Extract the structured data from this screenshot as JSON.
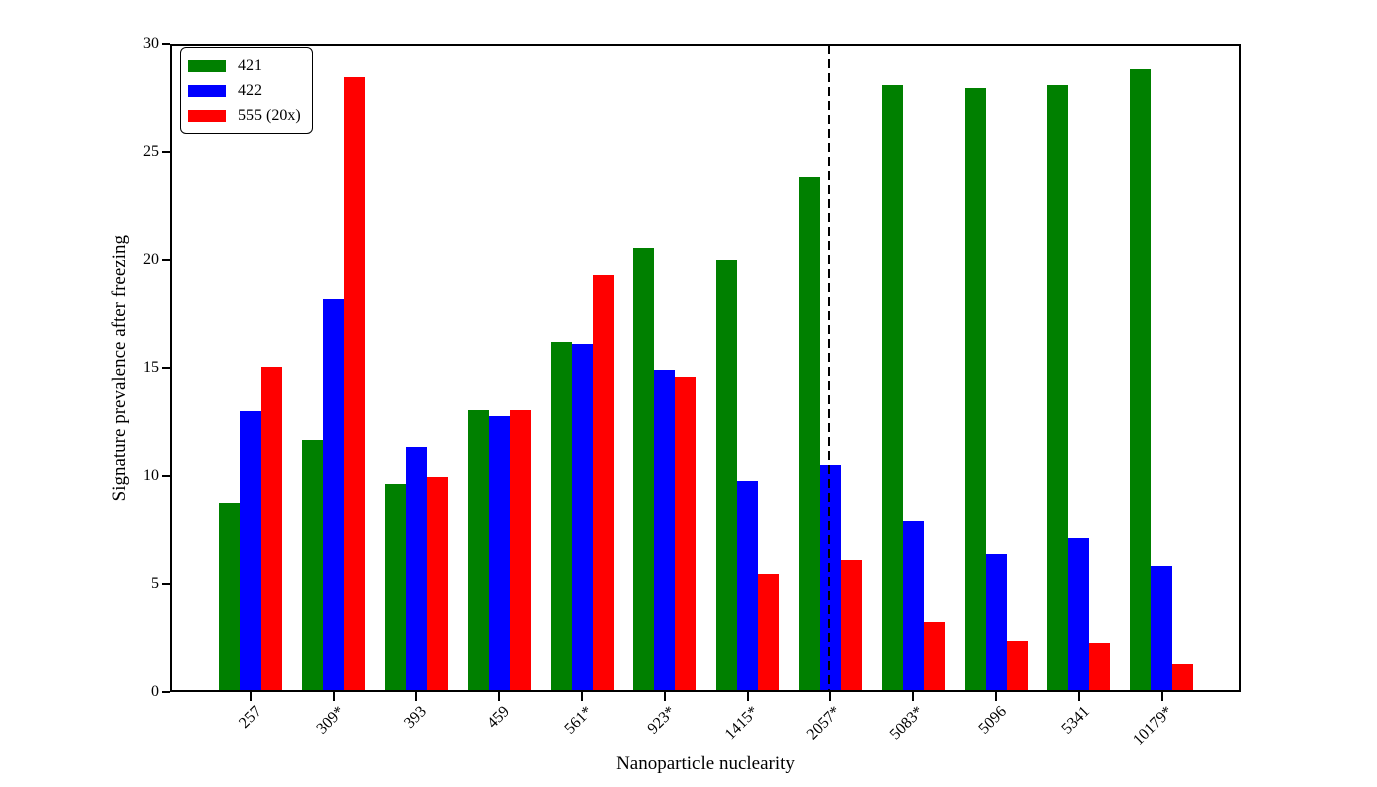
{
  "chart_data": {
    "type": "bar",
    "title": "",
    "xlabel": "Nanoparticle nuclearity",
    "ylabel": "Signature prevalence after freezing",
    "categories": [
      "257",
      "309*",
      "393",
      "459",
      "561*",
      "923*",
      "1415*",
      "2057*",
      "5083*",
      "5096",
      "5341",
      "10179*"
    ],
    "series": [
      {
        "name": "421",
        "color": "#008000",
        "values": [
          8.75,
          11.65,
          9.65,
          13.05,
          16.2,
          20.55,
          20.0,
          23.85,
          28.1,
          27.95,
          28.1,
          28.85
        ]
      },
      {
        "name": "422",
        "color": "#0000ff",
        "values": [
          13.0,
          18.2,
          11.35,
          12.8,
          16.1,
          14.9,
          9.75,
          10.5,
          7.9,
          6.4,
          7.15,
          5.85
        ]
      },
      {
        "name": "555 (20x)",
        "color": "#ff0000",
        "values": [
          15.05,
          28.45,
          9.95,
          13.05,
          19.3,
          14.6,
          5.45,
          6.1,
          3.25,
          2.35,
          2.25,
          1.3
        ]
      }
    ],
    "ylim": [
      0,
      30
    ],
    "yticks": [
      0,
      5,
      10,
      15,
      20,
      25,
      30
    ],
    "legend_position": "upper left",
    "grid": false,
    "annotations": [
      {
        "type": "vline",
        "at_category": "2057*",
        "style": "dashed",
        "color": "#000000"
      }
    ]
  }
}
